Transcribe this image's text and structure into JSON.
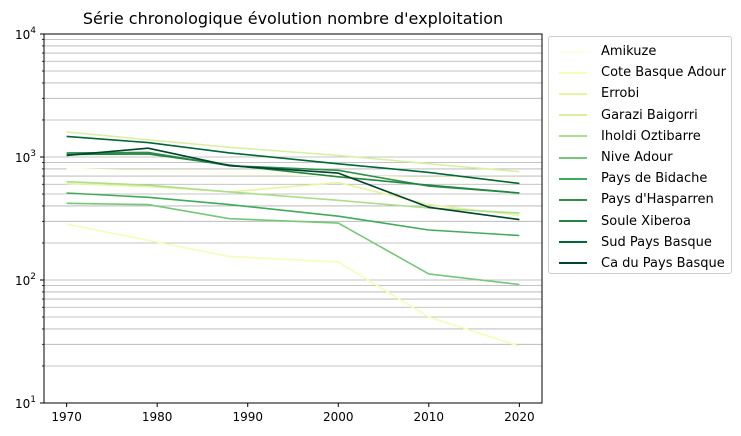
{
  "chart_data": {
    "type": "line",
    "title": "Série chronologique évolution nombre d'exploitation",
    "xlabel": "",
    "ylabel": "",
    "yscale": "log",
    "ylim": [
      10,
      10000
    ],
    "xlim": [
      1967.5,
      2022.5
    ],
    "x": [
      1970,
      1979,
      1988,
      2000,
      2010,
      2020
    ],
    "x_ticks": [
      "1970",
      "1980",
      "1990",
      "2000",
      "2010",
      "2020"
    ],
    "x_tick_values": [
      1970,
      1980,
      1990,
      2000,
      2010,
      2020
    ],
    "y_ticks": [
      {
        "base": "10",
        "exp": "1",
        "value": 10
      },
      {
        "base": "10",
        "exp": "2",
        "value": 100
      },
      {
        "base": "10",
        "exp": "3",
        "value": 1000
      },
      {
        "base": "10",
        "exp": "4",
        "value": 10000
      }
    ],
    "grid": "y-major-and-minor",
    "legend_position": "outside-right",
    "series": [
      {
        "name": "Amikuze",
        "color": "#ffffe5",
        "values": [
          800,
          770,
          740,
          700,
          680,
          660
        ]
      },
      {
        "name": "Cote Basque Adour",
        "color": "#f7fcb9",
        "values": [
          285,
          210,
          155,
          140,
          50,
          29
        ]
      },
      {
        "name": "Errobi",
        "color": "#e6f5a1",
        "values": [
          610,
          575,
          520,
          620,
          410,
          335
        ]
      },
      {
        "name": "Garazi Baigorri",
        "color": "#d9f0a3",
        "values": [
          1600,
          1380,
          1200,
          1030,
          880,
          760
        ]
      },
      {
        "name": "Iholdi Oztibarre",
        "color": "#addd8e",
        "values": [
          630,
          590,
          520,
          445,
          385,
          350
        ]
      },
      {
        "name": "Nive Adour",
        "color": "#78c679",
        "values": [
          420,
          410,
          315,
          290,
          112,
          92
        ]
      },
      {
        "name": "Pays de Bidache",
        "color": "#41ab5d",
        "values": [
          510,
          470,
          410,
          330,
          255,
          230
        ]
      },
      {
        "name": "Pays d'Hasparren",
        "color": "#2e9148",
        "values": [
          1080,
          1090,
          850,
          780,
          580,
          510
        ]
      },
      {
        "name": "Soule Xiberoa",
        "color": "#238443",
        "values": [
          1050,
          1060,
          860,
          690,
          590,
          510
        ]
      },
      {
        "name": "Sud Pays Basque",
        "color": "#006837",
        "values": [
          1470,
          1310,
          1080,
          880,
          750,
          610
        ]
      },
      {
        "name": "Ca du Pays Basque",
        "color": "#004529",
        "values": [
          1030,
          1180,
          850,
          740,
          390,
          310
        ]
      }
    ]
  }
}
